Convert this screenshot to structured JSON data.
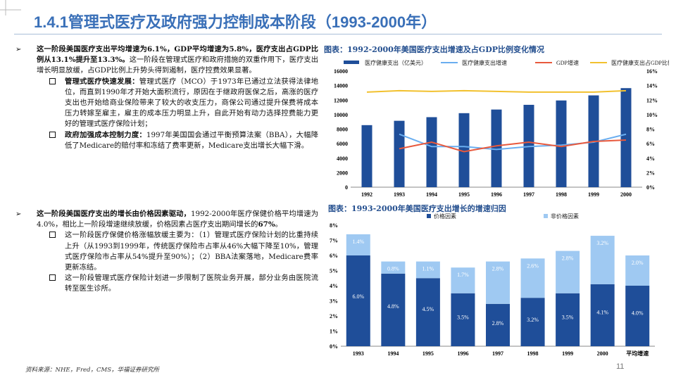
{
  "page": {
    "title": "1.4.1管理式医疗及政府强力控制成本阶段（1993-2000年）",
    "page_number": "11",
    "footer": "资料来源：NHE，Fred，CMS，华福证券研究所"
  },
  "left": {
    "block1": {
      "bold": "这一阶段美国医疗支出平均增速为6.1%，GDP平均增速为5.8%，医疗支出占GDP比例从13.1%提升至13.3%。",
      "text": "这一阶段在管理式医疗和政府措施的双重作用下，医疗支出增长明显放缓，占GDP比例上升势头得到遏制，医疗控费效果显著。",
      "subs": [
        {
          "bold": "管理式医疗快速发展：",
          "text": "管理式医疗（MCO）于1973年已通过立法获得法律地位，而直到1990年才开始大面积流行，原因在于继政府医保之后，高涨的医疗支出也开始给商业保险带来了较大的收支压力，商保公司通过提升保费将成本压力转嫁至雇主，雇主的成本压力明显上升，自此开始有动力选择控费能力更好的管理式医疗保险计划；"
        },
        {
          "bold": "政府加强成本控制力度：",
          "text": "1997年美国国会通过平衡预算法案（BBA），大幅降低了Medicare的赔付率和冻结了费率更新，Medicare支出增长大幅下滑。"
        }
      ]
    },
    "block2": {
      "bold": "这一阶段美国医疗支出的增长由价格因素驱动，",
      "text": "1992-2000年医疗保健价格平均增速为4.0%，相比上一阶段增速继续放缓，价格因素占医疗支出期间增长的",
      "bold_end": "67%",
      "text_end": "。",
      "subs": [
        {
          "text": "这一阶段医疗保健价格涨幅放缓主要为：（1）管理式医疗保险计划的比重持续上升（从1993到1999年，传统医疗保险市占率从46%大幅下降至10%，管理式医疗保险市占率从54%提升至90%）；（2）BBA法案落地，Medicare费率更新冻结。"
        },
        {
          "text": "这一阶段管理式医疗保险计划进一步限制了医院业务开展，部分业务由医院流转至医生诊所。"
        }
      ]
    }
  },
  "chart_data": [
    {
      "type": "bar",
      "title": "图表：1992-2000年美国医疗支出增速及占GDP比例变化情况",
      "categories": [
        "1992",
        "1993",
        "1994",
        "1995",
        "1996",
        "1997",
        "1998",
        "1999",
        "2000"
      ],
      "series": [
        {
          "name": "医疗健康支出（亿美元）",
          "kind": "bar",
          "axis": "left",
          "color": "#1f4e99",
          "values": [
            8550,
            9150,
            9650,
            10200,
            10700,
            11350,
            11950,
            12650,
            13650
          ]
        },
        {
          "name": "医疗健康支出增速",
          "kind": "line",
          "axis": "right",
          "color": "#6aaef0",
          "values": [
            null,
            7.3,
            5.6,
            5.6,
            5.2,
            5.6,
            5.8,
            6.2,
            7.3
          ]
        },
        {
          "name": "GDP增速",
          "kind": "line",
          "axis": "right",
          "color": "#e8593d",
          "values": [
            null,
            5.3,
            6.2,
            4.9,
            5.7,
            6.2,
            5.6,
            6.3,
            6.5
          ]
        },
        {
          "name": "医疗健康支出占GDP比例",
          "kind": "line",
          "axis": "right",
          "color": "#f2c12e",
          "values": [
            13.1,
            13.3,
            13.2,
            13.3,
            13.2,
            13.1,
            13.1,
            13.1,
            13.3
          ]
        }
      ],
      "ylim_left": [
        0,
        16000
      ],
      "ylim_right": [
        0,
        16
      ],
      "y_ticks_left": [
        "0",
        "2000",
        "4000",
        "6000",
        "8000",
        "10000",
        "12000",
        "14000",
        "16000"
      ],
      "y_ticks_right": [
        "0%",
        "2%",
        "4%",
        "6%",
        "8%",
        "10%",
        "12%",
        "14%",
        "16%"
      ],
      "legend": "top"
    },
    {
      "type": "bar",
      "stacked": true,
      "title": "图表：1993-2000年美国医疗支出增长的增速归因",
      "categories": [
        "1993",
        "1994",
        "1995",
        "1996",
        "1997",
        "1998",
        "1999",
        "2000",
        "平均增速"
      ],
      "series": [
        {
          "name": "价格因素",
          "color": "#1f4e99",
          "values": [
            6.0,
            4.8,
            4.5,
            3.5,
            2.8,
            3.2,
            3.5,
            4.1,
            4.0
          ],
          "labels": [
            "6.0%",
            "4.8%",
            "4.5%",
            "3.5%",
            "2.8%",
            "3.2%",
            "3.5%",
            "4.1%",
            "4.0%"
          ]
        },
        {
          "name": "非价格因素",
          "color": "#9fc9f2",
          "values": [
            1.4,
            0.8,
            1.1,
            1.7,
            2.8,
            2.6,
            2.8,
            3.2,
            2.0
          ],
          "labels": [
            "1.4%",
            "0.8%",
            "1.1%",
            "1.7%",
            "2.8%",
            "2.6%",
            "2.8%",
            "3.2%",
            "2.0%"
          ]
        }
      ],
      "ylim": [
        0,
        8
      ],
      "y_ticks": [
        "0%",
        "1%",
        "2%",
        "3%",
        "4%",
        "5%",
        "6%",
        "7%",
        "8%"
      ],
      "legend": "top"
    }
  ]
}
